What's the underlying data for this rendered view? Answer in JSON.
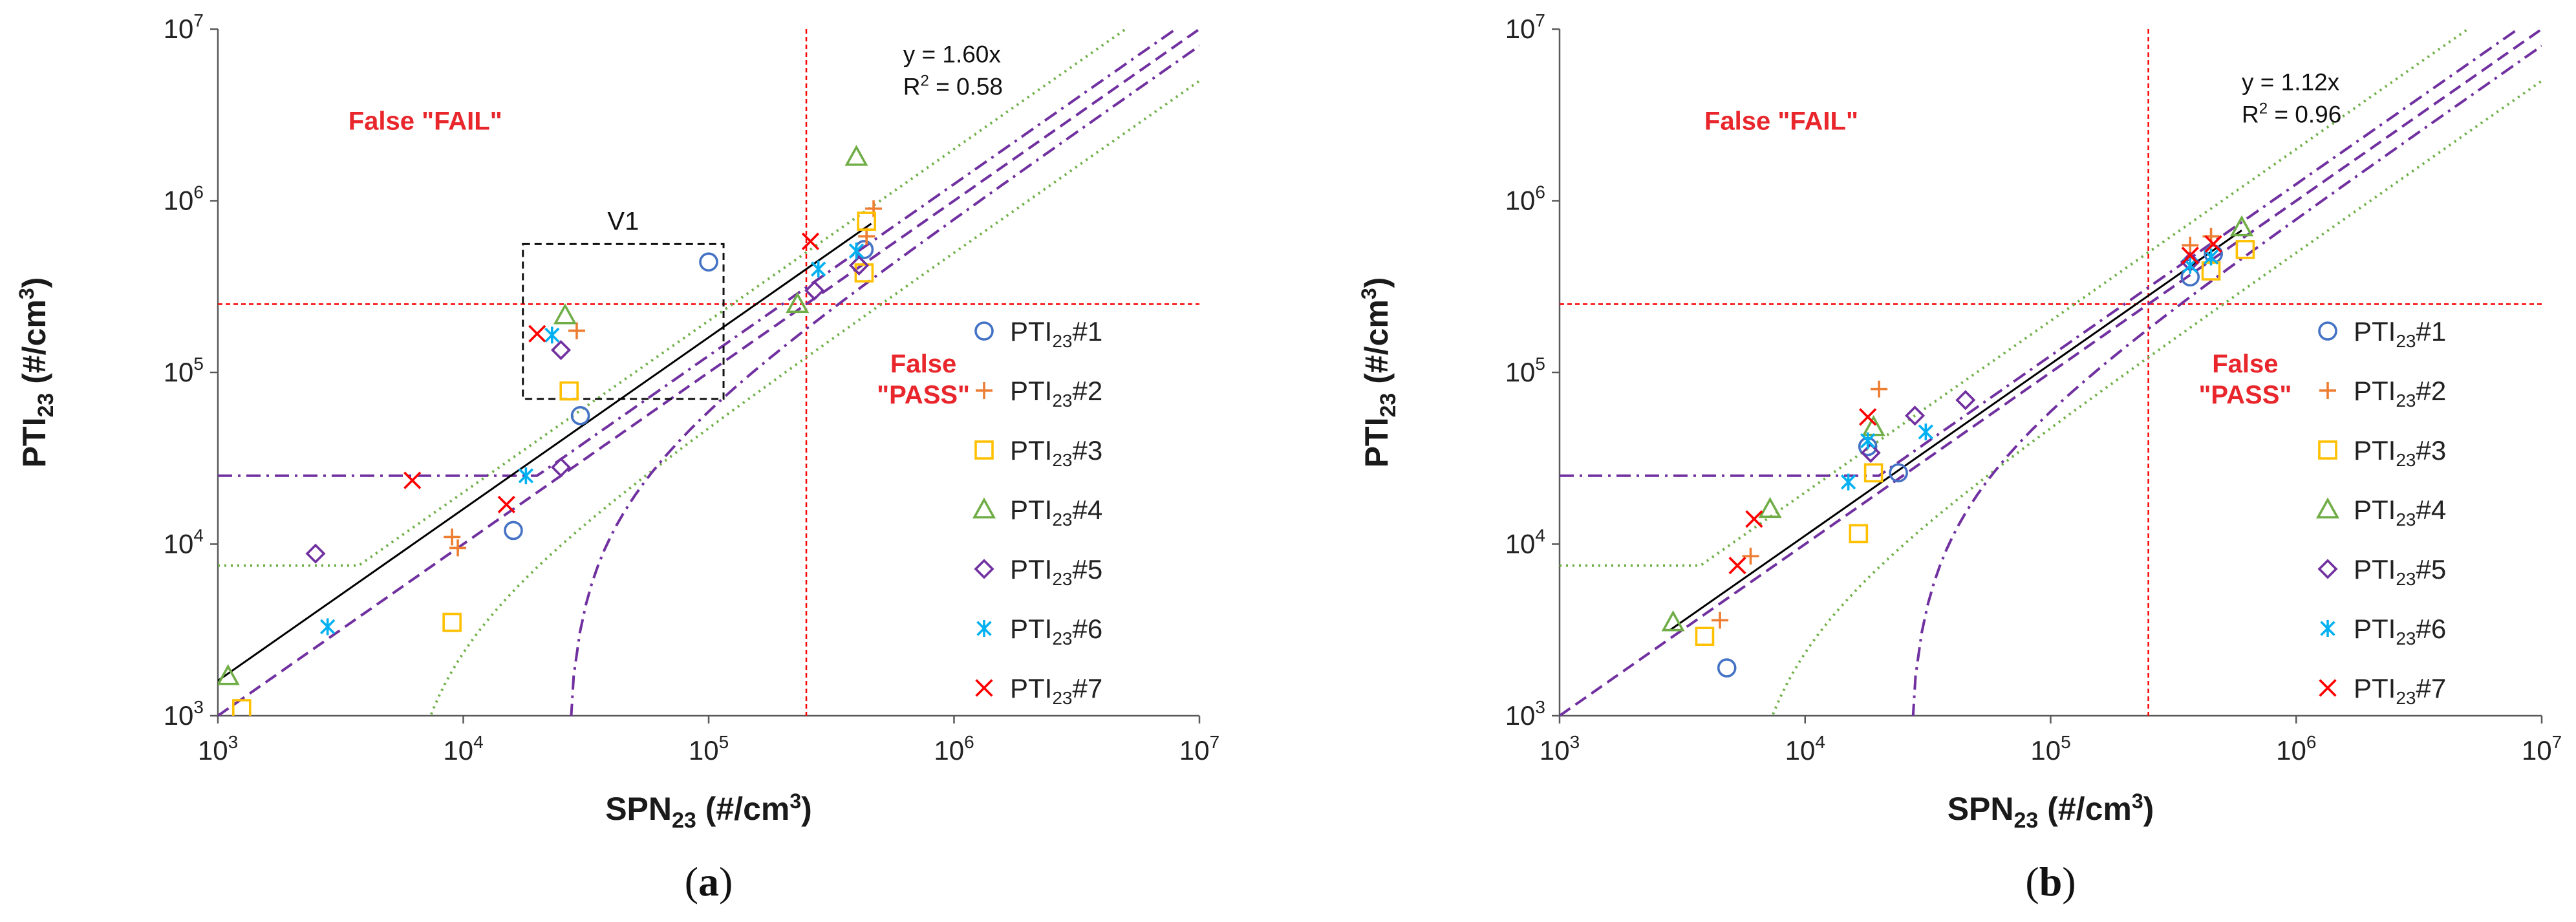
{
  "chart_data": [
    {
      "type": "scatter",
      "panel": "(a)",
      "panel_letter": "a",
      "xlabel": {
        "main": "SPN",
        "sub": "23",
        "unit_pre": " (#/cm",
        "unit_sup": "3",
        "unit_post": ")"
      },
      "ylabel": {
        "main": "PTI",
        "sub": "23",
        "unit_pre": " (#/cm",
        "unit_sup": "3",
        "unit_post": ")"
      },
      "xscale": "log",
      "yscale": "log",
      "xlim": [
        1000,
        10000000
      ],
      "ylim": [
        1000,
        10000000
      ],
      "xticks": [
        {
          "value": 1000,
          "base": "10",
          "exp": "3"
        },
        {
          "value": 10000,
          "base": "10",
          "exp": "4"
        },
        {
          "value": 100000,
          "base": "10",
          "exp": "5"
        },
        {
          "value": 1000000,
          "base": "10",
          "exp": "6"
        },
        {
          "value": 10000000,
          "base": "10",
          "exp": "7"
        }
      ],
      "yticks": [
        {
          "value": 1000,
          "base": "10",
          "exp": "3"
        },
        {
          "value": 10000,
          "base": "10",
          "exp": "4"
        },
        {
          "value": 100000,
          "base": "10",
          "exp": "5"
        },
        {
          "value": 1000000,
          "base": "10",
          "exp": "6"
        },
        {
          "value": 10000000,
          "base": "10",
          "exp": "7"
        }
      ],
      "threshold": 250000,
      "regions": [
        {
          "text": "False \"FAIL\"",
          "line2": "",
          "at": [
            7000,
            2600000
          ]
        },
        {
          "text": "False",
          "line2": "\"PASS\"",
          "at": [
            750000,
            100000
          ]
        }
      ],
      "fit": {
        "slope": 1.6,
        "from": 1000,
        "to": 460000,
        "eq_text": "y = 1.60x",
        "r2_text": "R",
        "r2_sup": "2",
        "r2_value": " = 0.58",
        "at": [
          620000,
          6400000
        ]
      },
      "box": {
        "label": "V1",
        "x": [
          17500,
          115000
        ],
        "y": [
          70000,
          560000
        ]
      },
      "bands": {
        "green_factor": 2.0,
        "green_floor": 7500,
        "purple_factor": 1.25,
        "purple_floor": 25000,
        "green_color": "#70b048",
        "purple_color": "#7030a0"
      },
      "series": [
        {
          "name": "PTI",
          "sub": "23",
          "num": "#1",
          "marker": "circle",
          "color": "#4472c4",
          "points": [
            [
              30000,
              56000
            ],
            [
              100000,
              440000
            ],
            [
              430000,
              520000
            ],
            [
              16000,
              12000
            ]
          ]
        },
        {
          "name": "PTI",
          "sub": "23",
          "num": "#2",
          "marker": "plus",
          "color": "#ed7d31",
          "points": [
            [
              9500,
              9500
            ],
            [
              9000,
              11000
            ],
            [
              29000,
              175000
            ],
            [
              440000,
              620000
            ],
            [
              470000,
              900000
            ]
          ]
        },
        {
          "name": "PTI",
          "sub": "23",
          "num": "#3",
          "marker": "square",
          "color": "#ffc000",
          "points": [
            [
              1250,
              1100
            ],
            [
              9000,
              3500
            ],
            [
              27000,
              78000
            ],
            [
              440000,
              760000
            ],
            [
              430000,
              380000
            ]
          ]
        },
        {
          "name": "PTI",
          "sub": "23",
          "num": "#4",
          "marker": "triangle",
          "color": "#70ad47",
          "points": [
            [
              1100,
              1700
            ],
            [
              26000,
              215000
            ],
            [
              230000,
              250000
            ],
            [
              400000,
              1800000
            ]
          ]
        },
        {
          "name": "PTI",
          "sub": "23",
          "num": "#5",
          "marker": "diamond",
          "color": "#7030a0",
          "points": [
            [
              2500,
              8800
            ],
            [
              25000,
              28000
            ],
            [
              25000,
              135000
            ],
            [
              270000,
              300000
            ],
            [
              410000,
              420000
            ]
          ]
        },
        {
          "name": "PTI",
          "sub": "23",
          "num": "#6",
          "marker": "asterisk",
          "color": "#00b0f0",
          "points": [
            [
              2800,
              3300
            ],
            [
              18000,
              25000
            ],
            [
              23000,
              165000
            ],
            [
              280000,
              400000
            ],
            [
              400000,
              510000
            ]
          ]
        },
        {
          "name": "PTI",
          "sub": "23",
          "num": "#7",
          "marker": "x",
          "color": "#ff0000",
          "points": [
            [
              6200,
              23500
            ],
            [
              15000,
              17000
            ],
            [
              20000,
              168000
            ],
            [
              260000,
              580000
            ]
          ]
        }
      ]
    },
    {
      "type": "scatter",
      "panel": "(b)",
      "panel_letter": "b",
      "xlabel": {
        "main": "SPN",
        "sub": "23",
        "unit_pre": " (#/cm",
        "unit_sup": "3",
        "unit_post": ")"
      },
      "ylabel": {
        "main": "PTI",
        "sub": "23",
        "unit_pre": " (#/cm",
        "unit_sup": "3",
        "unit_post": ")"
      },
      "xscale": "log",
      "yscale": "log",
      "xlim": [
        1000,
        10000000
      ],
      "ylim": [
        1000,
        10000000
      ],
      "xticks": [
        {
          "value": 1000,
          "base": "10",
          "exp": "3"
        },
        {
          "value": 10000,
          "base": "10",
          "exp": "4"
        },
        {
          "value": 100000,
          "base": "10",
          "exp": "5"
        },
        {
          "value": 1000000,
          "base": "10",
          "exp": "6"
        },
        {
          "value": 10000000,
          "base": "10",
          "exp": "7"
        }
      ],
      "yticks": [
        {
          "value": 1000,
          "base": "10",
          "exp": "3"
        },
        {
          "value": 10000,
          "base": "10",
          "exp": "4"
        },
        {
          "value": 100000,
          "base": "10",
          "exp": "5"
        },
        {
          "value": 1000000,
          "base": "10",
          "exp": "6"
        },
        {
          "value": 10000000,
          "base": "10",
          "exp": "7"
        }
      ],
      "threshold": 250000,
      "regions": [
        {
          "text": "False \"FAIL\"",
          "line2": "",
          "at": [
            8000,
            2600000
          ]
        },
        {
          "text": "False",
          "line2": "\"PASS\"",
          "at": [
            620000,
            100000
          ]
        }
      ],
      "fit": {
        "slope": 1.12,
        "from": 2800,
        "to": 600000,
        "eq_text": "y = 1.12x",
        "r2_text": "R",
        "r2_sup": "2",
        "r2_value": " = 0.96",
        "at": [
          600000,
          4400000
        ]
      },
      "box": null,
      "bands": {
        "green_factor": 2.0,
        "green_floor": 7500,
        "purple_factor": 1.25,
        "purple_floor": 25000,
        "green_color": "#70b048",
        "purple_color": "#7030a0"
      },
      "series": [
        {
          "name": "PTI",
          "sub": "23",
          "num": "#1",
          "marker": "circle",
          "color": "#4472c4",
          "points": [
            [
              4800,
              1900
            ],
            [
              24000,
              26000
            ],
            [
              18000,
              37000
            ],
            [
              370000,
              360000
            ],
            [
              460000,
              490000
            ]
          ]
        },
        {
          "name": "PTI",
          "sub": "23",
          "num": "#2",
          "marker": "plus",
          "color": "#ed7d31",
          "points": [
            [
              4500,
              3600
            ],
            [
              6000,
              8500
            ],
            [
              20000,
              80000
            ],
            [
              370000,
              550000
            ],
            [
              450000,
              620000
            ]
          ]
        },
        {
          "name": "PTI",
          "sub": "23",
          "num": "#3",
          "marker": "square",
          "color": "#ffc000",
          "points": [
            [
              3900,
              2900
            ],
            [
              16500,
              11500
            ],
            [
              19000,
              26000
            ],
            [
              450000,
              390000
            ],
            [
              620000,
              520000
            ]
          ]
        },
        {
          "name": "PTI",
          "sub": "23",
          "num": "#4",
          "marker": "triangle",
          "color": "#70ad47",
          "points": [
            [
              2900,
              3500
            ],
            [
              7200,
              16000
            ],
            [
              19000,
              48000
            ],
            [
              600000,
              700000
            ]
          ]
        },
        {
          "name": "PTI",
          "sub": "23",
          "num": "#5",
          "marker": "diamond",
          "color": "#7030a0",
          "points": [
            [
              18500,
              34000
            ],
            [
              28000,
              56000
            ],
            [
              45000,
              69000
            ],
            [
              370000,
              440000
            ]
          ]
        },
        {
          "name": "PTI",
          "sub": "23",
          "num": "#6",
          "marker": "asterisk",
          "color": "#00b0f0",
          "points": [
            [
              15000,
              23000
            ],
            [
              18000,
              40000
            ],
            [
              31000,
              45000
            ],
            [
              370000,
              420000
            ],
            [
              450000,
              470000
            ]
          ]
        },
        {
          "name": "PTI",
          "sub": "23",
          "num": "#7",
          "marker": "x",
          "color": "#ff0000",
          "points": [
            [
              5300,
              7500
            ],
            [
              6200,
              14000
            ],
            [
              18000,
              55000
            ],
            [
              370000,
              480000
            ],
            [
              460000,
              560000
            ]
          ]
        }
      ]
    }
  ]
}
